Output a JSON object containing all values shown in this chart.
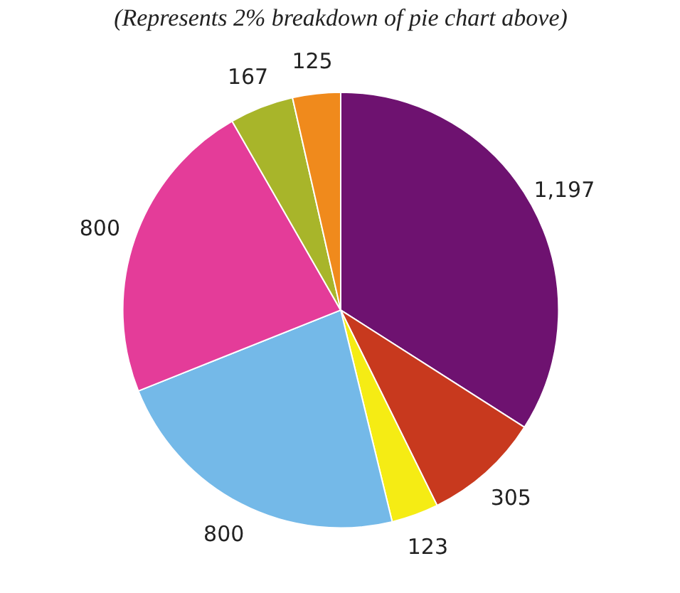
{
  "chart_data": {
    "type": "pie",
    "title": "(Represents 2% breakdown of pie chart above)",
    "categories": [
      null,
      null,
      null,
      null,
      null,
      null,
      null
    ],
    "values": [
      1197,
      305,
      123,
      800,
      800,
      167,
      125
    ],
    "value_labels": [
      "1,197",
      "305",
      "123",
      "800",
      "800",
      "167",
      "125"
    ],
    "colors": [
      "#6e1270",
      "#c8391e",
      "#f5ec14",
      "#74b9e8",
      "#e43c99",
      "#a8b52a",
      "#f08a1c"
    ]
  }
}
